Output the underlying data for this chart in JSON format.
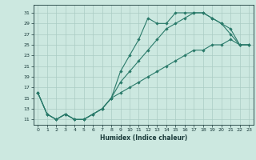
{
  "title": "",
  "xlabel": "Humidex (Indice chaleur)",
  "bg_color": "#cce8e0",
  "grid_color": "#aaccC4",
  "line_color": "#2a7a6a",
  "xlim": [
    -0.5,
    23.5
  ],
  "ylim": [
    10,
    32.5
  ],
  "xticks": [
    0,
    1,
    2,
    3,
    4,
    5,
    6,
    7,
    8,
    9,
    10,
    11,
    12,
    13,
    14,
    15,
    16,
    17,
    18,
    19,
    20,
    21,
    22,
    23
  ],
  "yticks": [
    11,
    13,
    15,
    17,
    19,
    21,
    23,
    25,
    27,
    29,
    31
  ],
  "line1_x": [
    0,
    1,
    2,
    3,
    4,
    5,
    6,
    7,
    8,
    9,
    10,
    11,
    12,
    13,
    14,
    15,
    16,
    17,
    18,
    19,
    20,
    21,
    22,
    23
  ],
  "line1_y": [
    16,
    12,
    11,
    12,
    11,
    11,
    12,
    13,
    15,
    20,
    23,
    26,
    30,
    29,
    29,
    31,
    31,
    31,
    31,
    30,
    29,
    28,
    25,
    25
  ],
  "line2_x": [
    0,
    1,
    2,
    3,
    4,
    5,
    6,
    7,
    8,
    9,
    10,
    11,
    12,
    13,
    14,
    15,
    16,
    17,
    18,
    19,
    20,
    21,
    22,
    23
  ],
  "line2_y": [
    16,
    12,
    11,
    12,
    11,
    11,
    12,
    13,
    15,
    16,
    17,
    18,
    19,
    20,
    21,
    22,
    23,
    24,
    24,
    25,
    25,
    26,
    25,
    25
  ],
  "line3_x": [
    0,
    1,
    2,
    3,
    4,
    5,
    6,
    7,
    8,
    9,
    10,
    11,
    12,
    13,
    14,
    15,
    16,
    17,
    18,
    19,
    20,
    21,
    22,
    23
  ],
  "line3_y": [
    16,
    12,
    11,
    12,
    11,
    11,
    12,
    13,
    15,
    18,
    20,
    22,
    24,
    26,
    28,
    29,
    30,
    31,
    31,
    30,
    29,
    27,
    25,
    25
  ]
}
